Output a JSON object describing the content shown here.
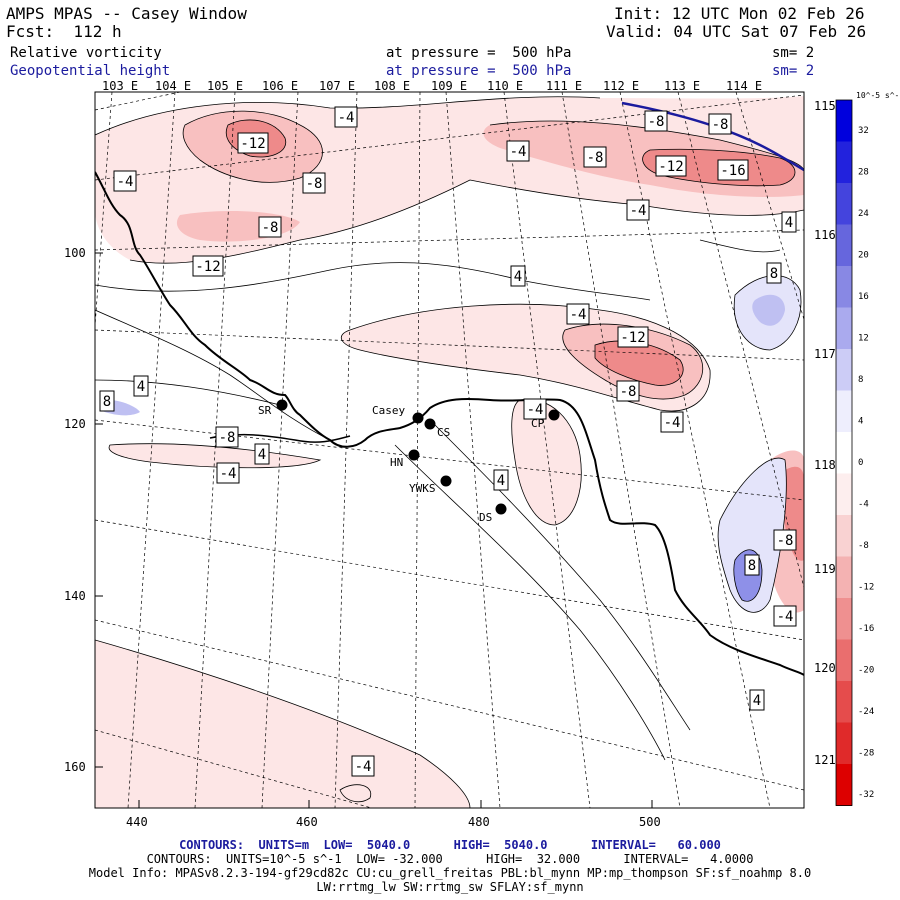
{
  "header": {
    "title": "AMPS MPAS -- Casey Window",
    "forecast": "Fcst:  112 h",
    "init": "Init: 12 UTC Mon 02 Feb 26",
    "valid": "Valid: 04 UTC Sat 07 Feb 26",
    "field1": "Relative vorticity",
    "field1_level": "at pressure =  500 hPa",
    "field1_sm": "sm= 2",
    "field2": "Geopotential height",
    "field2_level": "at pressure =  500 hPa",
    "field2_sm": "sm= 2"
  },
  "lon_top": [
    "103 E",
    "104 E",
    "105 E",
    "106 E",
    "107 E",
    "108 E",
    "109 E",
    "110 E",
    "111 E",
    "112 E",
    "113 E",
    "114 E"
  ],
  "lat_right": [
    "115 E",
    "116 E",
    "117 E",
    "118 E",
    "119 E",
    "120 E",
    "121 E"
  ],
  "x_ticks": [
    "440",
    "460",
    "480",
    "500"
  ],
  "y_ticks": [
    "100",
    "120",
    "140",
    "160"
  ],
  "colors": {
    "pos_light": "#fde6e6",
    "pos_mid": "#f8c0c0",
    "pos_dark": "#ee8a8a",
    "neg_light": "#e4e4fa",
    "neg_mid": "#bfc0f2",
    "neg_dark": "#8e90e8",
    "coast": "#000000",
    "height_line": "#1b1b9e"
  },
  "colorbar": {
    "units": "10^-5 s^-1",
    "labels": [
      "32",
      "28",
      "24",
      "20",
      "16",
      "12",
      "8",
      "4",
      "0",
      "-4",
      "-8",
      "-12",
      "-16",
      "-20",
      "-24",
      "-28",
      "-32"
    ],
    "colors": [
      "#0000dd",
      "#2222dd",
      "#4444dd",
      "#6666dd",
      "#8888e4",
      "#aaaaee",
      "#ccccf6",
      "#eeeefd",
      "#ffffff",
      "#fdeeee",
      "#f9d2d2",
      "#f4b2b2",
      "#ef9090",
      "#ea6e6e",
      "#e54c4c",
      "#e02a2a",
      "#dd0000"
    ]
  },
  "contour_labels": [
    {
      "text": "-12"
    },
    {
      "text": "-4"
    },
    {
      "text": "-4"
    },
    {
      "text": "-8"
    },
    {
      "text": "-8"
    },
    {
      "text": "-8"
    },
    {
      "text": "-8"
    },
    {
      "text": "-4"
    },
    {
      "text": "-8"
    },
    {
      "text": "-12"
    },
    {
      "text": "-16"
    },
    {
      "text": "-12"
    },
    {
      "text": "-4"
    },
    {
      "text": "4"
    },
    {
      "text": "8"
    },
    {
      "text": "4"
    },
    {
      "text": "-4"
    },
    {
      "text": "-12"
    },
    {
      "text": "-8"
    },
    {
      "text": "-4"
    },
    {
      "text": "-4"
    },
    {
      "text": "4"
    },
    {
      "text": "8"
    },
    {
      "text": "-8"
    },
    {
      "text": "4"
    },
    {
      "text": "-4"
    },
    {
      "text": "4"
    },
    {
      "text": "-8"
    },
    {
      "text": "8"
    },
    {
      "text": "-4"
    },
    {
      "text": "4"
    },
    {
      "text": "-4"
    }
  ],
  "stations": [
    {
      "name": "SR"
    },
    {
      "name": "Casey"
    },
    {
      "name": "CS"
    },
    {
      "name": "HN"
    },
    {
      "name": "YWKS"
    },
    {
      "name": "DS"
    },
    {
      "name": "CP"
    }
  ],
  "footer": {
    "line1_a": "CONTOURS:  UNITS=m  LOW=  5040.0      HIGH=  5040.0      INTERVAL=   60.000",
    "line2": "CONTOURS:  UNITS=10^-5 s^-1  LOW= -32.000      HIGH=  32.000      INTERVAL=   4.0000",
    "line3": "Model Info: MPASv8.2.3-194-gf29cd82c CU:cu_grell_freitas PBL:bl_mynn MP:mp_thompson SF:sf_noahmp 8.0",
    "line4": "LW:rrtmg_lw SW:rrtmg_sw SFLAY:sf_mynn"
  }
}
